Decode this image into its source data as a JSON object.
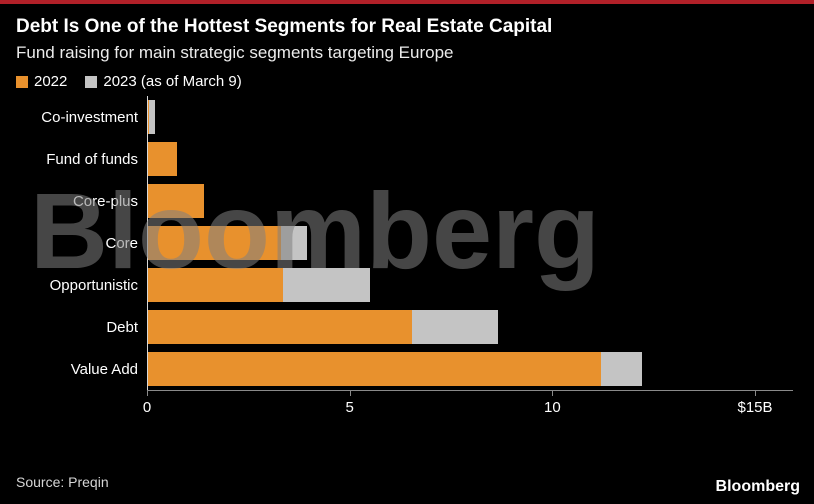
{
  "page": {
    "title": "Debt Is One of the Hottest Segments for Real Estate Capital",
    "subtitle": "Fund raising for main strategic segments targeting Europe",
    "source": "Source: Preqin",
    "brand": "Bloomberg",
    "watermark": "Bloomberg"
  },
  "colors": {
    "background": "#000000",
    "accent_top_bar": "#b12028",
    "series_2022": "#e8912d",
    "series_2023": "#c4c4c4",
    "axis": "#8a8a8a",
    "watermark": "rgba(128,128,128,0.55)"
  },
  "legend": [
    {
      "label": "2022",
      "color": "#e8912d"
    },
    {
      "label": "2023 (as of March 9)",
      "color": "#c4c4c4"
    }
  ],
  "chart_data": {
    "type": "bar",
    "orientation": "horizontal",
    "stacked": true,
    "title": "Debt Is One of the Hottest Segments for Real Estate Capital",
    "subtitle": "Fund raising for main strategic segments targeting Europe",
    "categories": [
      "Co-investment",
      "Fund of funds",
      "Core-plus",
      "Core",
      "Opportunistic",
      "Debt",
      "Value Add"
    ],
    "series": [
      {
        "name": "2022",
        "color": "#e8912d",
        "values": [
          0.05,
          0.75,
          1.4,
          3.3,
          3.35,
          6.55,
          11.2
        ]
      },
      {
        "name": "2023 (as of March 9)",
        "color": "#c4c4c4",
        "values": [
          0.15,
          0,
          0,
          0.65,
          2.15,
          2.1,
          1.0
        ]
      }
    ],
    "xlim": [
      0,
      15
    ],
    "xlabel": "",
    "ylabel": "",
    "grid": false,
    "legend_position": "top-left",
    "xticks": [
      {
        "value": 0,
        "label": "0"
      },
      {
        "value": 5,
        "label": "5"
      },
      {
        "value": 10,
        "label": "10"
      },
      {
        "value": 15,
        "label": "$15B"
      }
    ],
    "units": "billions USD"
  }
}
